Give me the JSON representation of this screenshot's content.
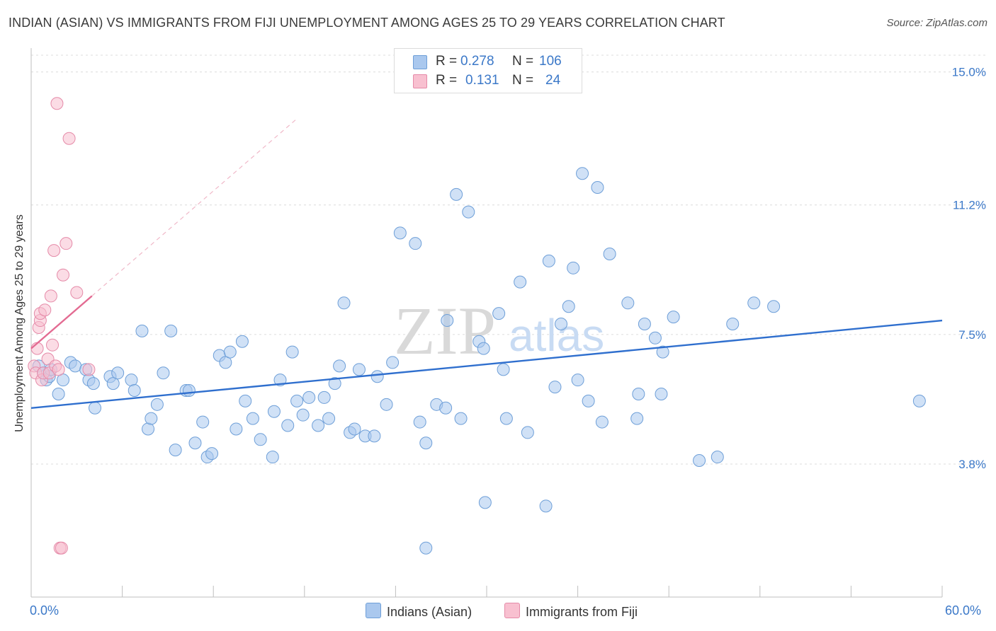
{
  "title": "INDIAN (ASIAN) VS IMMIGRANTS FROM FIJI UNEMPLOYMENT AMONG AGES 25 TO 29 YEARS CORRELATION CHART",
  "source": "Source: ZipAtlas.com",
  "watermark": {
    "zip": "ZIP",
    "atlas": "atlas"
  },
  "legend": {
    "rows": [
      {
        "r_label": "R =",
        "r_value": "0.278",
        "n_label": "N =",
        "n_value": "106",
        "color": "#aac8ee",
        "border": "#6e9fd8"
      },
      {
        "r_label": "R =",
        "r_value": "0.131",
        "n_label": "N =",
        "n_value": "24",
        "color": "#f8c0d0",
        "border": "#e58aa8"
      }
    ]
  },
  "bottom_legend": [
    {
      "label": "Indians (Asian)",
      "color": "#aac8ee",
      "border": "#6e9fd8"
    },
    {
      "label": "Immigrants from Fiji",
      "color": "#f8c0d0",
      "border": "#e58aa8"
    }
  ],
  "x_axis_labels": {
    "min": "0.0%",
    "max": "60.0%"
  },
  "chart_data": {
    "type": "scatter",
    "title": "INDIAN (ASIAN) VS IMMIGRANTS FROM FIJI UNEMPLOYMENT AMONG AGES 25 TO 29 YEARS CORRELATION CHART",
    "xlabel": "",
    "ylabel": "Unemployment Among Ages 25 to 29 years",
    "xlim": [
      0,
      60
    ],
    "ylim": [
      0,
      15.6
    ],
    "y_ticks": [
      {
        "value": 3.8,
        "label": "3.8%"
      },
      {
        "value": 7.5,
        "label": "7.5%"
      },
      {
        "value": 11.2,
        "label": "11.2%"
      },
      {
        "value": 15.0,
        "label": "15.0%"
      }
    ],
    "x_ticks": [
      0,
      6,
      12,
      18,
      24,
      30,
      36,
      42,
      48,
      54,
      60
    ],
    "series": [
      {
        "name": "Indians (Asian)",
        "color": "#aac8ee",
        "stroke": "#6e9fd8",
        "trend": {
          "x0": 0,
          "y0": 5.4,
          "x1": 60,
          "y1": 7.9,
          "color": "#2f6fce"
        },
        "points": [
          [
            0.5,
            6.6
          ],
          [
            0.8,
            6.4
          ],
          [
            1.0,
            6.2
          ],
          [
            1.2,
            6.3
          ],
          [
            1.3,
            6.5
          ],
          [
            1.8,
            5.8
          ],
          [
            2.1,
            6.2
          ],
          [
            2.6,
            6.7
          ],
          [
            2.9,
            6.6
          ],
          [
            3.6,
            6.5
          ],
          [
            3.8,
            6.2
          ],
          [
            4.1,
            6.1
          ],
          [
            4.2,
            5.4
          ],
          [
            5.2,
            6.3
          ],
          [
            5.4,
            6.1
          ],
          [
            5.7,
            6.4
          ],
          [
            6.6,
            6.2
          ],
          [
            6.8,
            5.9
          ],
          [
            7.3,
            7.6
          ],
          [
            7.7,
            4.8
          ],
          [
            7.9,
            5.1
          ],
          [
            8.3,
            5.5
          ],
          [
            8.7,
            6.4
          ],
          [
            9.2,
            7.6
          ],
          [
            9.5,
            4.2
          ],
          [
            10.2,
            5.9
          ],
          [
            10.4,
            5.9
          ],
          [
            10.8,
            4.4
          ],
          [
            11.3,
            5.0
          ],
          [
            11.6,
            4.0
          ],
          [
            11.9,
            4.1
          ],
          [
            12.4,
            6.9
          ],
          [
            12.8,
            6.7
          ],
          [
            13.1,
            7.0
          ],
          [
            13.5,
            4.8
          ],
          [
            13.9,
            7.3
          ],
          [
            14.1,
            5.6
          ],
          [
            14.6,
            5.1
          ],
          [
            15.1,
            4.5
          ],
          [
            15.9,
            4.0
          ],
          [
            16.0,
            5.3
          ],
          [
            16.4,
            6.2
          ],
          [
            16.9,
            4.9
          ],
          [
            17.2,
            7.0
          ],
          [
            17.5,
            5.6
          ],
          [
            17.9,
            5.2
          ],
          [
            18.3,
            5.7
          ],
          [
            18.9,
            4.9
          ],
          [
            19.3,
            5.7
          ],
          [
            19.6,
            5.1
          ],
          [
            20.0,
            6.1
          ],
          [
            20.3,
            6.6
          ],
          [
            20.6,
            8.4
          ],
          [
            21.0,
            4.7
          ],
          [
            21.3,
            4.8
          ],
          [
            21.6,
            6.5
          ],
          [
            22.0,
            4.6
          ],
          [
            22.6,
            4.6
          ],
          [
            22.8,
            6.3
          ],
          [
            23.4,
            5.5
          ],
          [
            23.8,
            6.7
          ],
          [
            24.3,
            10.4
          ],
          [
            25.3,
            10.1
          ],
          [
            25.6,
            5.0
          ],
          [
            26.0,
            4.4
          ],
          [
            26.0,
            1.4
          ],
          [
            26.7,
            5.5
          ],
          [
            27.3,
            5.4
          ],
          [
            27.4,
            7.9
          ],
          [
            28.0,
            11.5
          ],
          [
            28.3,
            5.1
          ],
          [
            28.8,
            11.0
          ],
          [
            29.5,
            7.3
          ],
          [
            29.8,
            7.1
          ],
          [
            29.9,
            2.7
          ],
          [
            30.8,
            8.1
          ],
          [
            31.1,
            6.5
          ],
          [
            31.3,
            5.1
          ],
          [
            32.2,
            9.0
          ],
          [
            32.7,
            4.7
          ],
          [
            33.9,
            2.6
          ],
          [
            34.1,
            9.6
          ],
          [
            34.5,
            6.0
          ],
          [
            34.9,
            7.8
          ],
          [
            35.4,
            8.3
          ],
          [
            35.7,
            9.4
          ],
          [
            36.0,
            6.2
          ],
          [
            36.3,
            12.1
          ],
          [
            36.7,
            5.6
          ],
          [
            37.3,
            11.7
          ],
          [
            38.1,
            9.8
          ],
          [
            39.3,
            8.4
          ],
          [
            40.0,
            5.8
          ],
          [
            40.4,
            7.8
          ],
          [
            41.1,
            7.4
          ],
          [
            44.0,
            3.9
          ],
          [
            45.2,
            4.0
          ],
          [
            47.6,
            8.4
          ],
          [
            48.9,
            8.3
          ],
          [
            58.5,
            5.6
          ],
          [
            41.6,
            7.0
          ],
          [
            42.3,
            8.0
          ],
          [
            46.2,
            7.8
          ],
          [
            39.9,
            5.1
          ],
          [
            37.6,
            5.0
          ],
          [
            41.5,
            5.8
          ]
        ]
      },
      {
        "name": "Immigrants from Fiji",
        "color": "#f8c0d0",
        "stroke": "#e58aa8",
        "trend": {
          "x0": 0,
          "y0": 7.1,
          "x1": 4.0,
          "y1": 8.6,
          "color": "#e36b92",
          "dash_to_x": 17.5
        },
        "points": [
          [
            0.2,
            6.6
          ],
          [
            0.3,
            6.4
          ],
          [
            0.4,
            7.1
          ],
          [
            0.5,
            7.7
          ],
          [
            0.6,
            7.9
          ],
          [
            0.6,
            8.1
          ],
          [
            0.7,
            6.2
          ],
          [
            0.8,
            6.4
          ],
          [
            0.9,
            8.2
          ],
          [
            1.1,
            6.8
          ],
          [
            1.2,
            6.4
          ],
          [
            1.3,
            8.6
          ],
          [
            1.4,
            7.2
          ],
          [
            1.5,
            9.9
          ],
          [
            1.6,
            6.6
          ],
          [
            1.7,
            14.1
          ],
          [
            1.8,
            6.5
          ],
          [
            1.9,
            1.4
          ],
          [
            2.0,
            1.4
          ],
          [
            2.1,
            9.2
          ],
          [
            2.3,
            10.1
          ],
          [
            2.5,
            13.1
          ],
          [
            3.0,
            8.7
          ],
          [
            3.8,
            6.5
          ]
        ]
      }
    ]
  }
}
